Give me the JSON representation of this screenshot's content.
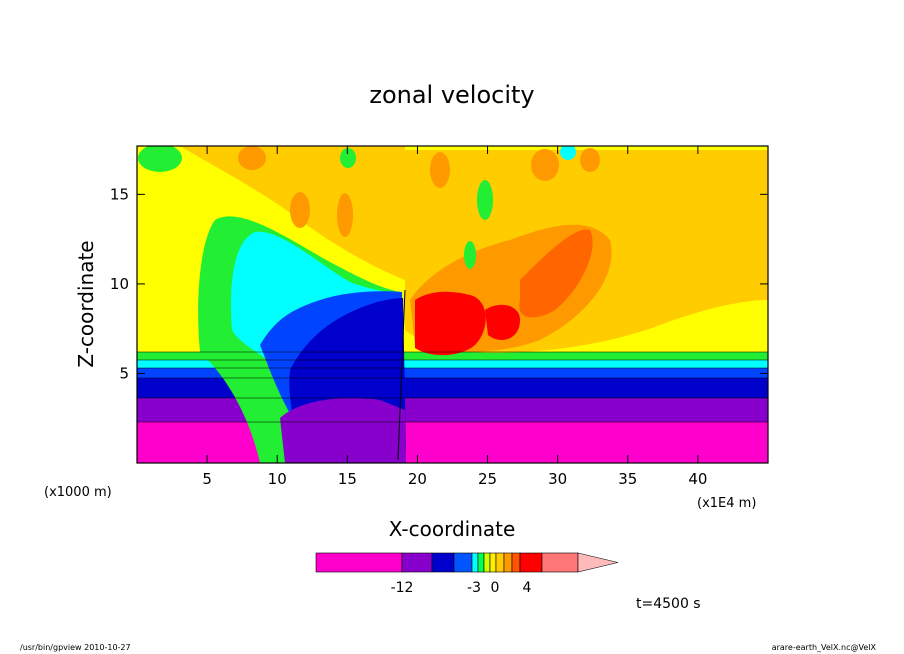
{
  "chart_data": {
    "type": "heatmap",
    "title": "zonal velocity",
    "xlabel": "X-coordinate",
    "ylabel": "Z-coordinate",
    "x_unit_label": "(x1E4 m)",
    "y_unit_label": "(x1000 m)",
    "xlim": [
      0,
      45
    ],
    "ylim": [
      0,
      17.7
    ],
    "x_ticks": [
      5,
      10,
      15,
      20,
      25,
      30,
      35,
      40
    ],
    "y_ticks": [
      5,
      10,
      15
    ],
    "colorbar": {
      "tick_labels": [
        "-12",
        "-3",
        "0",
        "4"
      ],
      "colors": [
        "#ff00cc",
        "#8800cc",
        "#0000cc",
        "#0055ff",
        "#00ffff",
        "#00ff55",
        "#ccff00",
        "#ffee00",
        "#ffcc00",
        "#ff9900",
        "#ff5500",
        "#ff0000",
        "#ff7777",
        "#ffbbbb"
      ]
    },
    "annotation_time": "t=4500 s",
    "colors": {
      "magenta": "#ff00cc",
      "purple": "#8800cc",
      "navy": "#0000cc",
      "blue": "#0044ff",
      "cyan": "#00ffff",
      "green": "#22ee33",
      "yellow": "#ffff00",
      "gold": "#ffcc00",
      "orange": "#ff9900",
      "dark_orange": "#ff6600",
      "red": "#ff0000",
      "salmon": "#ff6666"
    }
  },
  "footer": {
    "left": "/usr/bin/gpview  2010-10-27",
    "right": "arare-earth_VelX.nc@VelX"
  }
}
